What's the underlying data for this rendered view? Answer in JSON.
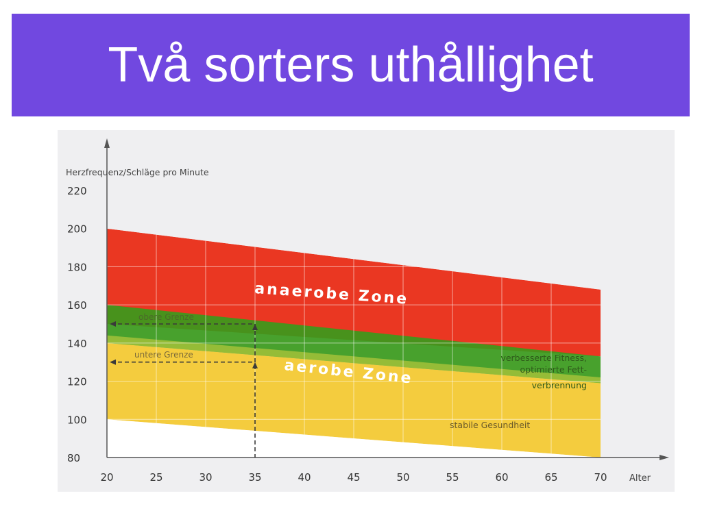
{
  "slide": {
    "title": "Två sorters uthållighet"
  },
  "colors": {
    "title_bg": "#7148e0",
    "anaerobic": "#ea3722",
    "aerobic": "#3a9a1c",
    "health": "#f4cc3e",
    "axis": "#555555",
    "marker": "#3a3a3a"
  },
  "chart_data": {
    "type": "area",
    "ylabel": "Herzfrequenz/Schläge pro Minute",
    "xlabel": "Alter",
    "xlim": [
      20,
      70
    ],
    "ylim": [
      80,
      220
    ],
    "x_ticks": [
      20,
      25,
      30,
      35,
      40,
      45,
      50,
      55,
      60,
      65,
      70
    ],
    "y_ticks": [
      80,
      100,
      120,
      140,
      160,
      180,
      200,
      220
    ],
    "grid": true,
    "bands": [
      {
        "name": "anaerobe Zone",
        "color": "#ea3722",
        "x": [
          20,
          70
        ],
        "lower": [
          150,
          133
        ],
        "upper": [
          200,
          168
        ]
      },
      {
        "name": "aerobe Zone",
        "color": "#3a9a1c",
        "x": [
          20,
          70
        ],
        "lower": [
          140,
          119
        ],
        "upper": [
          160,
          133
        ]
      },
      {
        "name": "stabile Gesundheit",
        "color": "#f4cc3e",
        "x": [
          20,
          70
        ],
        "lower": [
          100,
          80
        ],
        "upper": [
          140,
          119
        ]
      }
    ],
    "zone_labels": {
      "anaerobic": "anaerobe Zone",
      "aerobic": "aerobe Zone",
      "health": "stabile Gesundheit",
      "fitness_line1": "verbesserte Fitness,",
      "fitness_line2": "optimierte Fett-",
      "fitness_line3": "verbrennung"
    },
    "markers": [
      {
        "label": "obere Grenze",
        "x": 35,
        "y": 150
      },
      {
        "label": "untere Grenze",
        "x": 35,
        "y": 130
      }
    ]
  }
}
